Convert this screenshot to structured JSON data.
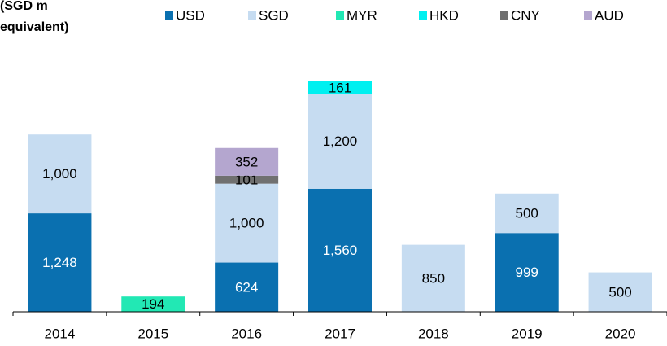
{
  "chart_data": {
    "type": "stacked_bar",
    "title": [
      "(SGD m",
      "equivalent)"
    ],
    "categories": [
      "2014",
      "2015",
      "2016",
      "2017",
      "2018",
      "2019",
      "2020"
    ],
    "series": [
      {
        "name": "USD",
        "color": "#0a70b0",
        "values": [
          1248,
          null,
          624,
          1560,
          null,
          999,
          null
        ],
        "value_labels": [
          "1,248",
          null,
          "624",
          "1,560",
          null,
          "999",
          null
        ]
      },
      {
        "name": "SGD",
        "color": "#c6dcf1",
        "values": [
          1000,
          null,
          1000,
          1200,
          850,
          500,
          500
        ],
        "value_labels": [
          "1,000",
          null,
          "1,000",
          "1,200",
          "850",
          "500",
          "500"
        ]
      },
      {
        "name": "MYR",
        "color": "#22e8b4",
        "values": [
          null,
          194,
          null,
          null,
          null,
          null,
          null
        ],
        "value_labels": [
          null,
          "194",
          null,
          null,
          null,
          null,
          null
        ]
      },
      {
        "name": "HKD",
        "color": "#00f0f0",
        "values": [
          null,
          null,
          null,
          161,
          null,
          null,
          null
        ],
        "value_labels": [
          null,
          null,
          null,
          "161",
          null,
          null,
          null
        ]
      },
      {
        "name": "CNY",
        "color": "#707070",
        "values": [
          null,
          null,
          101,
          null,
          null,
          null,
          null
        ],
        "value_labels": [
          null,
          null,
          "101",
          null,
          null,
          null,
          null
        ]
      },
      {
        "name": "AUD",
        "color": "#b4a6cf",
        "values": [
          null,
          null,
          352,
          null,
          null,
          null,
          null
        ],
        "value_labels": [
          null,
          null,
          "352",
          null,
          null,
          null,
          null
        ]
      }
    ],
    "legend": "top"
  }
}
